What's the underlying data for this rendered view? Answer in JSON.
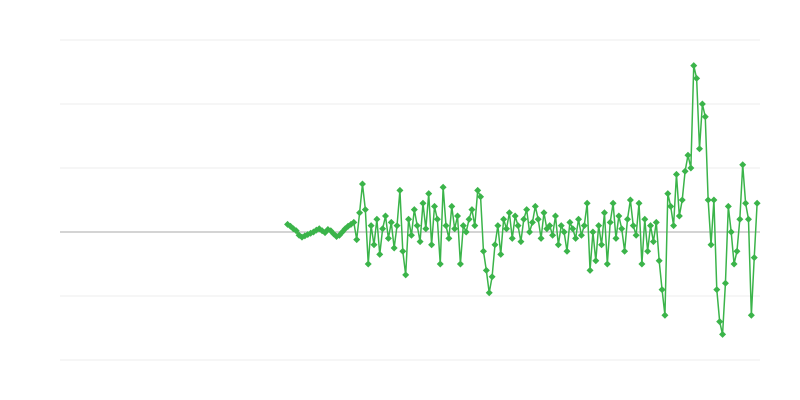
{
  "chart_data": {
    "type": "line",
    "color": "#3bb44a",
    "xlim": [
      -79,
      164
    ],
    "ylim": [
      -2,
      3
    ],
    "yticks": [
      -2,
      -1,
      0,
      1,
      2,
      3
    ],
    "grid": true,
    "values": [
      0.12,
      0.09,
      0.05,
      0.02,
      -0.05,
      -0.08,
      -0.06,
      -0.04,
      -0.02,
      0.0,
      0.03,
      0.05,
      0.02,
      -0.01,
      0.04,
      0.02,
      -0.03,
      -0.07,
      -0.05,
      0.0,
      0.05,
      0.09,
      0.12,
      0.15,
      -0.12,
      0.3,
      0.75,
      0.35,
      -0.5,
      0.1,
      -0.2,
      0.2,
      -0.35,
      0.05,
      0.25,
      -0.1,
      0.15,
      -0.25,
      0.1,
      0.65,
      -0.3,
      -0.67,
      0.2,
      -0.05,
      0.35,
      0.1,
      -0.15,
      0.45,
      0.05,
      0.6,
      -0.2,
      0.4,
      0.2,
      -0.5,
      0.7,
      0.1,
      -0.1,
      0.4,
      0.05,
      0.25,
      -0.5,
      0.1,
      0.0,
      0.2,
      0.35,
      0.1,
      0.65,
      0.55,
      -0.3,
      -0.6,
      -0.95,
      -0.7,
      -0.2,
      0.1,
      -0.35,
      0.2,
      0.05,
      0.3,
      -0.1,
      0.25,
      0.1,
      -0.15,
      0.2,
      0.35,
      0.0,
      0.15,
      0.4,
      0.2,
      -0.1,
      0.3,
      0.05,
      0.1,
      -0.05,
      0.25,
      -0.2,
      0.1,
      0.0,
      -0.3,
      0.15,
      0.05,
      -0.1,
      0.2,
      -0.05,
      0.1,
      0.45,
      -0.6,
      0.0,
      -0.45,
      0.1,
      -0.2,
      0.3,
      -0.5,
      0.15,
      0.45,
      -0.1,
      0.25,
      0.05,
      -0.3,
      0.2,
      0.5,
      0.1,
      -0.05,
      0.45,
      -0.5,
      0.2,
      -0.3,
      0.1,
      -0.15,
      0.15,
      -0.45,
      -0.9,
      -1.3,
      0.6,
      0.4,
      0.1,
      0.9,
      0.25,
      0.5,
      0.95,
      1.2,
      1.0,
      2.6,
      2.4,
      1.3,
      2.0,
      1.8,
      0.5,
      -0.2,
      0.5,
      -0.9,
      -1.4,
      -1.6,
      -0.8,
      0.4,
      0.0,
      -0.5,
      -0.3,
      0.2,
      1.05,
      0.45,
      0.2,
      -1.3,
      -0.4,
      0.45
    ]
  }
}
